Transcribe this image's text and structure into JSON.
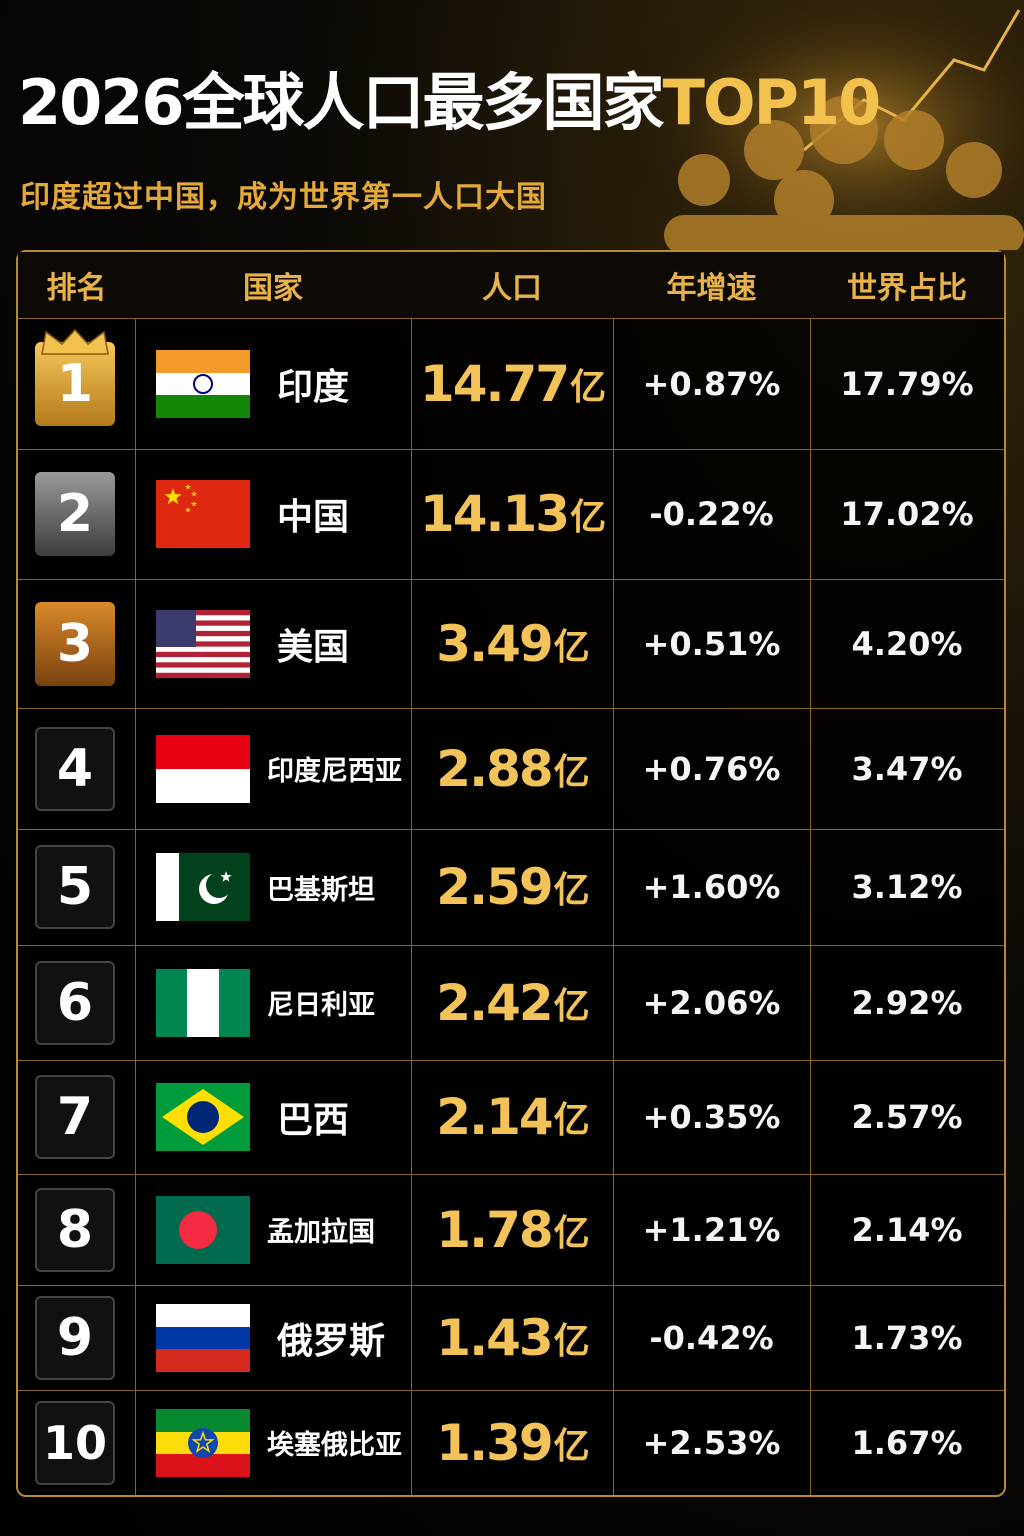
{
  "header": {
    "title": "2026全球人口最多国家",
    "title_highlight": "TOP10",
    "subtitle": "印度超过中国，成为世界第一人口大国"
  },
  "table": {
    "columns": [
      "排名",
      "国家",
      "人口",
      "年增速",
      "世界占比"
    ],
    "rows": [
      {
        "rank": 1,
        "country": "印度",
        "population": "14.77",
        "unit": "亿",
        "growth": "+0.87%",
        "share": "17.79%"
      },
      {
        "rank": 2,
        "country": "中国",
        "population": "14.13",
        "unit": "亿",
        "growth": "-0.22%",
        "share": "17.02%"
      },
      {
        "rank": 3,
        "country": "美国",
        "population": "3.49",
        "unit": "亿",
        "growth": "+0.51%",
        "share": "4.20%"
      },
      {
        "rank": 4,
        "country": "印度尼西亚",
        "population": "2.88",
        "unit": "亿",
        "growth": "+0.76%",
        "share": "3.47%"
      },
      {
        "rank": 5,
        "country": "巴基斯坦",
        "population": "2.59",
        "unit": "亿",
        "growth": "+1.60%",
        "share": "3.12%"
      },
      {
        "rank": 6,
        "country": "尼日利亚",
        "population": "2.42",
        "unit": "亿",
        "growth": "+2.06%",
        "share": "2.92%"
      },
      {
        "rank": 7,
        "country": "巴西",
        "population": "2.14",
        "unit": "亿",
        "growth": "+0.35%",
        "share": "2.57%"
      },
      {
        "rank": 8,
        "country": "孟加拉国",
        "population": "1.78",
        "unit": "亿",
        "growth": "+1.21%",
        "share": "2.14%"
      },
      {
        "rank": 9,
        "country": "俄罗斯",
        "population": "1.43",
        "unit": "亿",
        "growth": "-0.42%",
        "share": "1.73%"
      },
      {
        "rank": 10,
        "country": "埃塞俄比亚",
        "population": "1.39",
        "unit": "亿",
        "growth": "+2.53%",
        "share": "1.67%"
      }
    ]
  }
}
